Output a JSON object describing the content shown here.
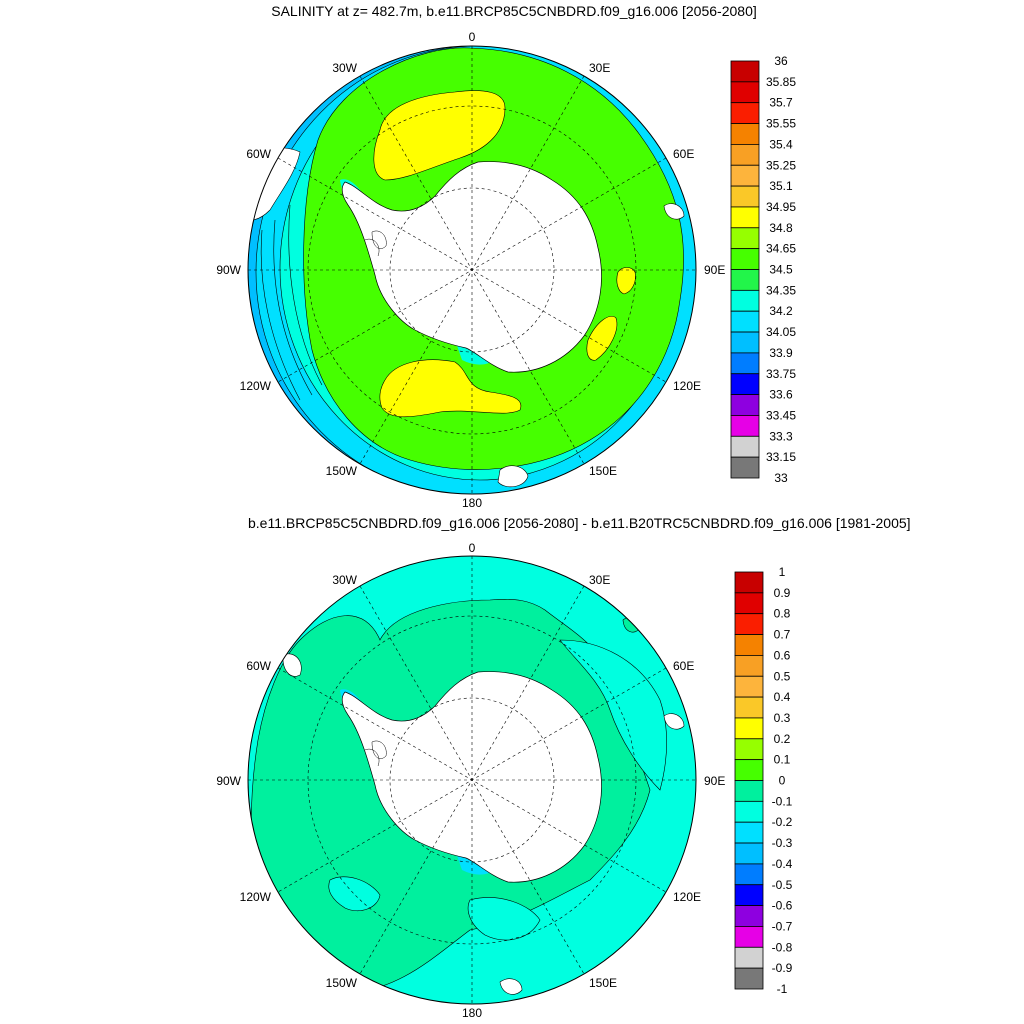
{
  "panel1": {
    "title": "SALINITY at z= 482.7m, b.e11.BRCP85C5CNBDRD.f09_g16.006 [2056-2080]",
    "labelbar": {
      "labels": [
        "36",
        "35.85",
        "35.7",
        "35.55",
        "35.4",
        "35.25",
        "35.1",
        "34.95",
        "34.8",
        "34.65",
        "34.5",
        "34.35",
        "34.2",
        "34.05",
        "33.9",
        "33.75",
        "33.6",
        "33.45",
        "33.3",
        "33.15",
        "33"
      ],
      "colors": [
        "#c80000",
        "#e00000",
        "#fa1e00",
        "#f58200",
        "#f8a024",
        "#fdb43c",
        "#fac828",
        "#ffff00",
        "#96ff00",
        "#46ff00",
        "#22f54a",
        "#00ffe0",
        "#00e0ff",
        "#00bfff",
        "#007dff",
        "#0000ff",
        "#8e00e0",
        "#e600e6",
        "#d2d2d2",
        "#787878"
      ]
    }
  },
  "panel2": {
    "title": "b.e11.BRCP85C5CNBDRD.f09_g16.006 [2056-2080] - b.e11.B20TRC5CNBDRD.f09_g16.006 [1981-2005]",
    "labelbar": {
      "labels": [
        "1",
        "0.9",
        "0.8",
        "0.7",
        "0.6",
        "0.5",
        "0.4",
        "0.3",
        "0.2",
        "0.1",
        "0",
        "-0.1",
        "-0.2",
        "-0.3",
        "-0.4",
        "-0.5",
        "-0.6",
        "-0.7",
        "-0.8",
        "-0.9",
        "-1"
      ],
      "colors": [
        "#c80000",
        "#e00000",
        "#fa1e00",
        "#f58200",
        "#f8a024",
        "#fdb43c",
        "#fac828",
        "#ffff00",
        "#96ff00",
        "#46ff00",
        "#00f09e",
        "#00ffe0",
        "#00e0ff",
        "#00bfff",
        "#007dff",
        "#0000ff",
        "#8e00e0",
        "#e600e6",
        "#d2d2d2",
        "#787878"
      ]
    }
  },
  "lon_labels": {
    "top": "0",
    "bottom": "180",
    "upper_left": "30W",
    "upper_right": "30E",
    "left_upper": "60W",
    "right_upper": "60E",
    "left": "90W",
    "right": "90E",
    "left_lower": "120W",
    "right_lower": "120E",
    "lower_left": "150W",
    "lower_right": "150E"
  }
}
